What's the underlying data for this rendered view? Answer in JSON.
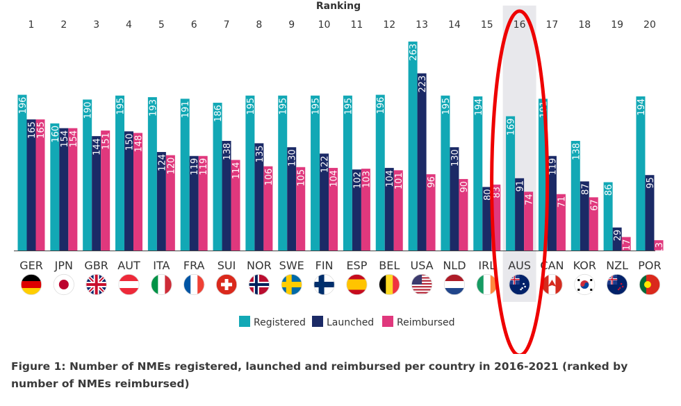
{
  "chart_data": {
    "type": "bar",
    "title": "Ranking",
    "categories": [
      "GER",
      "JPN",
      "GBR",
      "AUT",
      "ITA",
      "FRA",
      "SUI",
      "NOR",
      "SWE",
      "FIN",
      "ESP",
      "BEL",
      "USA",
      "NLD",
      "IRL",
      "AUS",
      "CAN",
      "KOR",
      "NZL",
      "POR"
    ],
    "ranks": [
      "1",
      "2",
      "3",
      "4",
      "5",
      "6",
      "7",
      "8",
      "9",
      "10",
      "11",
      "12",
      "13",
      "14",
      "15",
      "16",
      "17",
      "18",
      "19",
      "20"
    ],
    "series": [
      {
        "name": "Registered",
        "color": "#12a8b5",
        "values": [
          196,
          160,
          190,
          195,
          193,
          191,
          186,
          195,
          195,
          195,
          195,
          196,
          263,
          195,
          194,
          169,
          191,
          138,
          86,
          194
        ]
      },
      {
        "name": "Launched",
        "color": "#1b2a66",
        "values": [
          165,
          154,
          144,
          150,
          124,
          119,
          138,
          135,
          130,
          122,
          102,
          104,
          223,
          130,
          80,
          91,
          119,
          87,
          29,
          95
        ]
      },
      {
        "name": "Reimbursed",
        "color": "#e0387d",
        "values": [
          165,
          154,
          151,
          148,
          120,
          119,
          114,
          106,
          105,
          104,
          103,
          101,
          96,
          90,
          83,
          74,
          71,
          67,
          17,
          13
        ]
      }
    ],
    "highlight": "AUS",
    "legend_position": "bottom-center",
    "xlabel": "",
    "ylabel": "",
    "ylim": [
      0,
      270
    ],
    "grid": false
  },
  "caption": "Figure 1: Number of NMEs registered, launched and reimbursed per country in 2016-2021 (ranked by number of NMEs reimbursed)"
}
